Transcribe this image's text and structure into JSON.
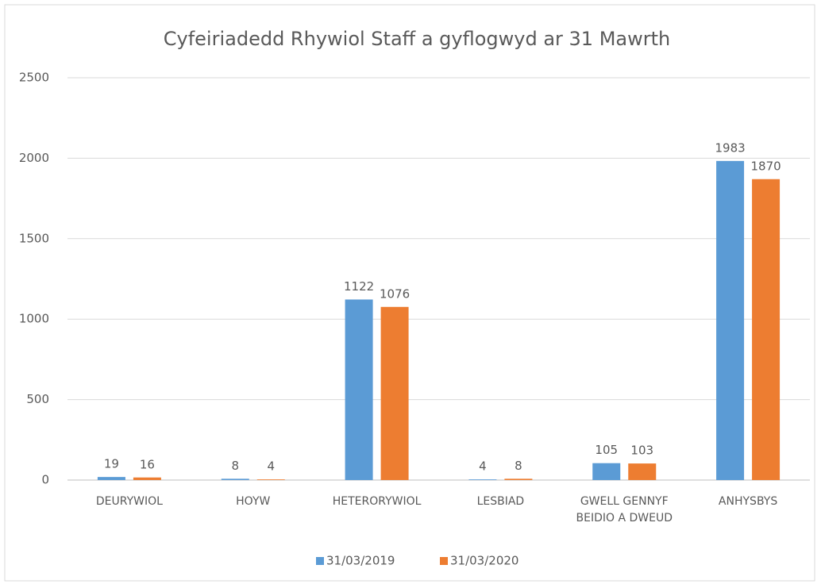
{
  "chart_data": {
    "type": "bar",
    "title": "Cyfeiriadedd Rhywiol Staff a gyflogwyd ar 31 Mawrth",
    "categories": [
      "DEURYWIOL",
      "HOYW",
      "HETERORYWIOL",
      "LESBIAD",
      "GWELL GENNYF BEIDIO A DWEUD",
      "ANHYSBYS"
    ],
    "series": [
      {
        "name": "31/03/2019",
        "color": "#5b9bd5",
        "values": [
          19,
          8,
          1122,
          4,
          105,
          1983
        ]
      },
      {
        "name": "31/03/2020",
        "color": "#ed7d31",
        "values": [
          16,
          4,
          1076,
          8,
          103,
          1870
        ]
      }
    ],
    "ylim": [
      0,
      2500
    ],
    "yticks": [
      0,
      500,
      1000,
      1500,
      2000,
      2500
    ],
    "grid": true,
    "legend": "bottom"
  }
}
